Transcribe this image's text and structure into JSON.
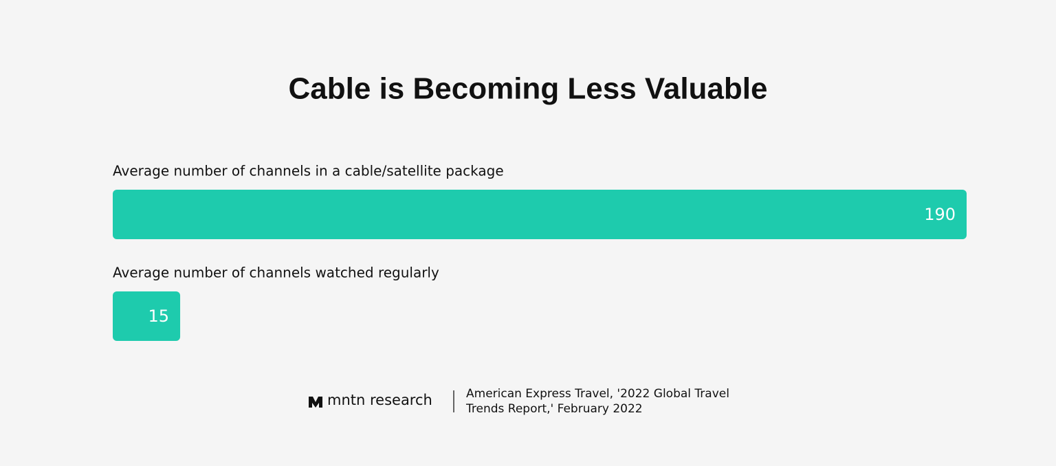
{
  "chart_data": {
    "type": "bar",
    "orientation": "horizontal",
    "title": "Cable is Becoming Less Valuable",
    "categories": [
      "Average number of channels in a cable/satellite package",
      "Average number of channels watched regularly"
    ],
    "values": [
      190,
      15
    ],
    "color": "#1ecbad"
  },
  "footer": {
    "brand": "mntn research",
    "source_lines": [
      "American Express Travel, '2022 Global Travel",
      "Trends Report,' February 2022"
    ]
  }
}
